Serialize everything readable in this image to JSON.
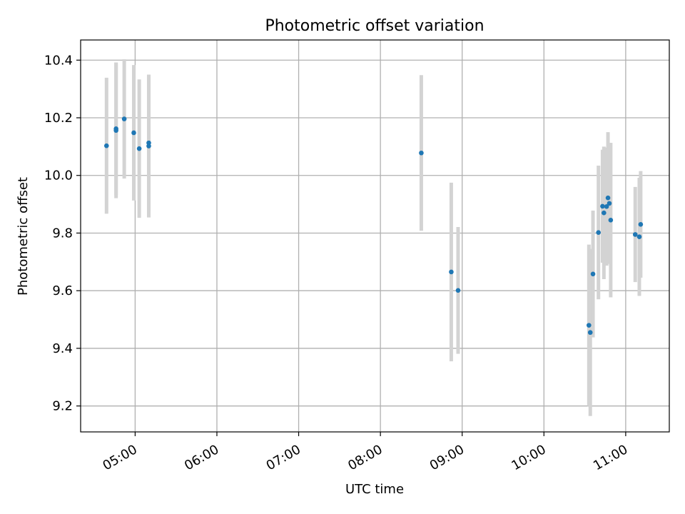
{
  "chart_data": {
    "type": "scatter",
    "title": "Photometric offset variation",
    "xlabel": "UTC time",
    "ylabel": "Photometric offset",
    "x_unit": "hours UTC",
    "xlim": [
      "04:20",
      "11:32"
    ],
    "ylim": [
      9.11,
      10.47
    ],
    "xticks": [
      "05:00",
      "06:00",
      "07:00",
      "08:00",
      "09:00",
      "10:00",
      "11:00"
    ],
    "yticks": [
      "9.2",
      "9.4",
      "9.6",
      "9.8",
      "10.0",
      "10.2",
      "10.4"
    ],
    "grid": true,
    "point_color": "#1f77b4",
    "errorbar_color": "#d3d3d3",
    "points": [
      {
        "x": "04:39",
        "y": 10.103,
        "err": 0.236
      },
      {
        "x": "04:46",
        "y": 10.156,
        "err": 0.235
      },
      {
        "x": "04:46",
        "y": 10.162,
        "err": 0.23
      },
      {
        "x": "04:52",
        "y": 10.196,
        "err": 0.207
      },
      {
        "x": "04:59",
        "y": 10.148,
        "err": 0.235
      },
      {
        "x": "05:03",
        "y": 10.093,
        "err": 0.24
      },
      {
        "x": "05:10",
        "y": 10.113,
        "err": 0.235
      },
      {
        "x": "05:10",
        "y": 10.102,
        "err": 0.248
      },
      {
        "x": "08:30",
        "y": 10.078,
        "err": 0.27
      },
      {
        "x": "08:52",
        "y": 9.665,
        "err": 0.31
      },
      {
        "x": "08:57",
        "y": 9.601,
        "err": 0.22
      },
      {
        "x": "10:33",
        "y": 9.48,
        "err": 0.28
      },
      {
        "x": "10:34",
        "y": 9.455,
        "err": 0.29
      },
      {
        "x": "10:36",
        "y": 9.658,
        "err": 0.22
      },
      {
        "x": "10:40",
        "y": 9.802,
        "err": 0.232
      },
      {
        "x": "10:43",
        "y": 9.893,
        "err": 0.196
      },
      {
        "x": "10:44",
        "y": 9.87,
        "err": 0.23
      },
      {
        "x": "10:46",
        "y": 9.892,
        "err": 0.205
      },
      {
        "x": "10:47",
        "y": 9.922,
        "err": 0.228
      },
      {
        "x": "10:48",
        "y": 9.903,
        "err": 0.21
      },
      {
        "x": "10:49",
        "y": 9.845,
        "err": 0.268
      },
      {
        "x": "11:07",
        "y": 9.795,
        "err": 0.165
      },
      {
        "x": "11:10",
        "y": 9.787,
        "err": 0.205
      },
      {
        "x": "11:11",
        "y": 9.83,
        "err": 0.185
      }
    ]
  }
}
